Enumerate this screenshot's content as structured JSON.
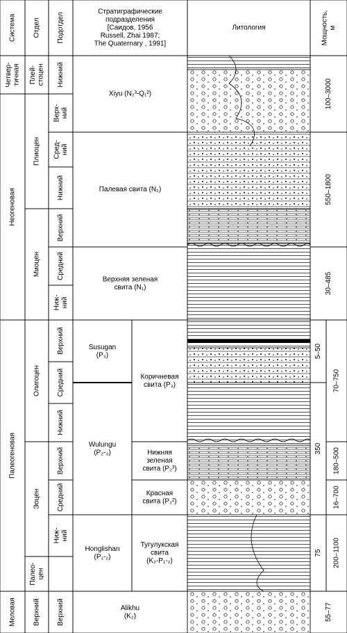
{
  "header": {
    "system": "Система",
    "series": "Отдел",
    "subseries": "Подотдел",
    "units": [
      "Стратиграфические",
      "подразделения",
      "[Саидов, 1956",
      "Russell, Zhai 1987;",
      "The Quaternary , 1991]"
    ],
    "lithology": "Литология",
    "thickness": [
      "Мощность,",
      "м"
    ]
  },
  "systems": [
    [
      "Четвер-",
      "тичная"
    ],
    [
      "Неогеновая"
    ],
    [
      "Палеогеновая"
    ],
    [
      "Меловая"
    ]
  ],
  "series": [
    [
      "Плей-",
      "стоцен"
    ],
    [
      "Плиоцен"
    ],
    [
      "Миоцен"
    ],
    [
      "Олигоцен"
    ],
    [
      "Эоцен"
    ],
    [
      "Палео-",
      "цен"
    ],
    [
      "Верхний"
    ]
  ],
  "subseries": [
    [
      "Нижний"
    ],
    [
      "Верх-",
      "ний"
    ],
    [
      "Сред-",
      "ний"
    ],
    [
      "Нижний"
    ],
    [
      "Верхний"
    ],
    [
      "Средний"
    ],
    [
      "Ниж-",
      "ний"
    ],
    [
      "Верхний"
    ],
    [
      "Средний"
    ],
    [
      "Нижний"
    ],
    [
      "Верхний"
    ],
    [
      "Средний"
    ],
    [
      "Ниж-",
      "ний"
    ],
    [
      "Верхний"
    ]
  ],
  "units": [
    [
      "Xiyu (N₂³-Q₁²)"
    ],
    [
      "Палевая свита (N₂)"
    ],
    [
      "Верхняя зеленая",
      "свита (N₁)"
    ],
    [
      "Susugan",
      "(P₃)"
    ],
    [
      "Wulungu",
      "(P₂-₃)"
    ],
    [
      "Honglishan",
      "(P₁-₂)"
    ],
    [
      "Коричневая",
      "свита (P₃)"
    ],
    [
      "Нижняя",
      "зеленая",
      "свита (P₂³)"
    ],
    [
      "Красная",
      "свита (P₂²)"
    ],
    [
      "Тугулукская",
      "свита",
      "(K₂-P₁-₂)"
    ],
    [
      "Alikhu",
      "(K₂)"
    ]
  ],
  "thickness": [
    "100–3000",
    "550–1800",
    "30–485",
    "5–50",
    "350",
    "75",
    "70–750",
    "180–500",
    "16–700",
    "200–1100",
    "55–77"
  ]
}
